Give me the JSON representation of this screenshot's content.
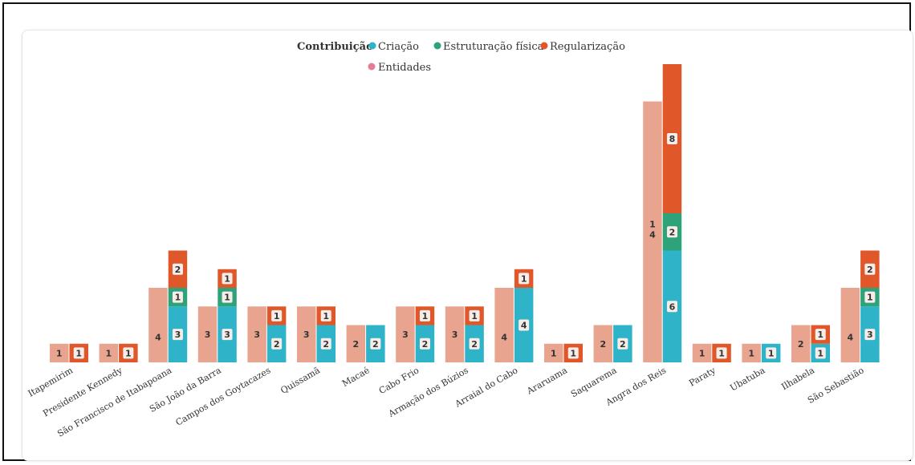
{
  "chart_data": {
    "type": "bar",
    "legend": {
      "title": "Contribuição",
      "placement": "top-center",
      "items": [
        {
          "name": "Criação",
          "color": "#2fb3c9"
        },
        {
          "name": "Estruturação física",
          "color": "#2ea37a"
        },
        {
          "name": "Regularização",
          "color": "#e0582a"
        },
        {
          "name": "Entidades",
          "color": "#e57c95"
        }
      ]
    },
    "categories": [
      "Itapemirim",
      "Presidente Kennedy",
      "São Francisco de Itabapoana",
      "São João da Barra",
      "Campos dos Goytacazes",
      "Quissamã",
      "Macaé",
      "Cabo Frio",
      "Armação dos Búzios",
      "Arraial do Cabo",
      "Araruama",
      "Saquarema",
      "Angra dos Reis",
      "Paraty",
      "Ubatuba",
      "Ilhabela",
      "São Sebastião"
    ],
    "series": [
      {
        "name": "Entidades",
        "values": [
          1,
          1,
          4,
          3,
          3,
          3,
          2,
          3,
          3,
          4,
          1,
          2,
          14,
          1,
          1,
          2,
          4
        ],
        "labels": [
          "1",
          "1",
          "4",
          "3",
          "3",
          "3",
          "2",
          "3",
          "3",
          "4",
          "1",
          "2",
          "1\n4",
          "1",
          "1",
          "2",
          "4"
        ]
      },
      {
        "name": "Criação",
        "values": [
          0,
          0,
          3,
          3,
          2,
          2,
          2,
          2,
          2,
          4,
          0,
          2,
          6,
          0,
          1,
          1,
          3
        ]
      },
      {
        "name": "Estruturação física",
        "values": [
          0,
          0,
          1,
          1,
          0,
          0,
          0,
          0,
          0,
          0,
          0,
          0,
          2,
          0,
          0,
          0,
          1
        ]
      },
      {
        "name": "Regularização",
        "values": [
          1,
          1,
          2,
          1,
          1,
          1,
          0,
          1,
          1,
          1,
          1,
          0,
          8,
          1,
          0,
          1,
          2
        ]
      }
    ],
    "ylim": [
      0,
      16
    ]
  }
}
